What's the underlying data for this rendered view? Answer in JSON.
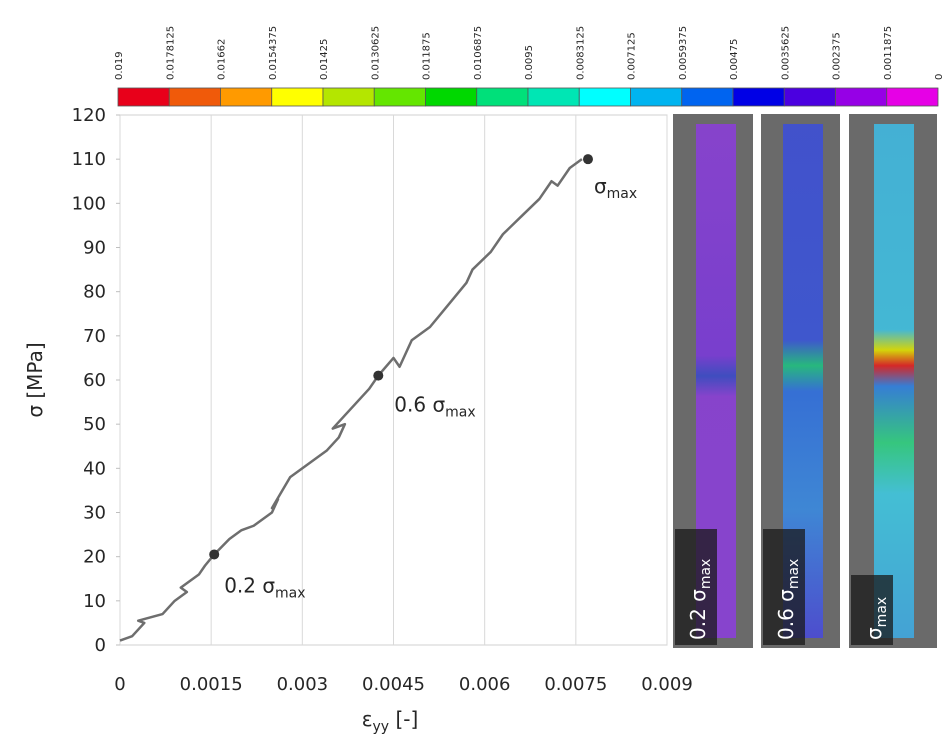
{
  "chart_data": {
    "type": "line",
    "ylabel": "σ [MPa]",
    "xlabel": {
      "text": "ε",
      "sub": "yy",
      "suffix": " [-]"
    },
    "xlim": [
      0,
      0.009
    ],
    "xticks": [
      0,
      0.0015,
      0.003,
      0.0045,
      0.006,
      0.0075,
      0.009
    ],
    "ylim": [
      0,
      120
    ],
    "yticks": [
      0,
      10,
      20,
      30,
      40,
      50,
      60,
      70,
      80,
      90,
      100,
      110,
      120
    ],
    "grid": "x",
    "series": [
      {
        "color": "#6e6e6e",
        "x": [
          0,
          0.0002,
          0.0004,
          0.0003,
          0.0007,
          0.0009,
          0.0011,
          0.001,
          0.0013,
          0.0014,
          0.00155,
          0.0018,
          0.002,
          0.0022,
          0.0025,
          0.0026,
          0.0025,
          0.0028,
          0.0031,
          0.0034,
          0.0036,
          0.0037,
          0.0035,
          0.0039,
          0.0041,
          0.00425,
          0.0045,
          0.0046,
          0.0048,
          0.0051,
          0.0054,
          0.0057,
          0.0058,
          0.0061,
          0.0063,
          0.0066,
          0.0069,
          0.0071,
          0.0072,
          0.0074,
          0.0076
        ],
        "values": [
          1,
          2,
          5,
          5.5,
          7,
          10,
          12,
          13,
          16,
          18,
          20.5,
          24,
          26,
          27,
          30,
          33,
          31,
          38,
          41,
          44,
          47,
          50,
          49,
          55,
          58,
          61,
          65,
          63,
          69,
          72,
          77,
          82,
          85,
          89,
          93,
          97,
          101,
          105,
          104,
          108,
          110
        ]
      }
    ],
    "markers": {
      "color": "#333333",
      "x": [
        0.00155,
        0.00425,
        0.0077
      ],
      "values": [
        20.5,
        61,
        110
      ]
    },
    "annotations": [
      {
        "text": "0.2 σ",
        "sub": "max"
      },
      {
        "text": "0.6 σ",
        "sub": "max"
      },
      {
        "text": "σ",
        "sub": "max"
      }
    ],
    "colorbar": {
      "ticks": [
        0.019,
        0.0178125,
        0.01662,
        0.0154375,
        0.01425,
        0.0130625,
        0.011875,
        0.0106875,
        0.0095,
        0.0083125,
        0.007125,
        0.0059375,
        0.00475,
        0.0035625,
        0.002375,
        0.0011875,
        0
      ],
      "colors": [
        "#e8001a",
        "#f05a0a",
        "#ff9a00",
        "#ffff00",
        "#b4e600",
        "#64e600",
        "#00d800",
        "#00e07a",
        "#00e6b4",
        "#00ffff",
        "#00b4f0",
        "#0064f0",
        "#0000e6",
        "#4b00e0",
        "#9600e6",
        "#e600e6"
      ]
    },
    "images": [
      {
        "text": "0.2 σ",
        "sub": "max"
      },
      {
        "text": "0.6 σ",
        "sub": "max"
      },
      {
        "text": "σ",
        "sub": "max"
      }
    ]
  }
}
